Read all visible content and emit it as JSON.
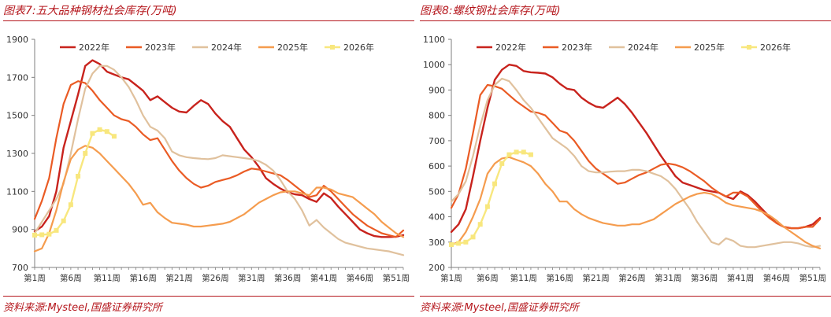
{
  "panels": [
    {
      "title": "图表7:五大品种钢材社会库存(万吨)",
      "source": "资料来源:Mysteel,国盛证券研究所",
      "chart_data": {
        "type": "line",
        "title": "图表7:五大品种钢材社会库存(万吨)",
        "xlabel": "",
        "ylabel": "万吨",
        "ylim": [
          700,
          1900
        ],
        "yticks": [
          700,
          900,
          1100,
          1300,
          1500,
          1700,
          1900
        ],
        "x_count": 52,
        "xtick_labels": [
          "第1周",
          "第6周",
          "第11周",
          "第16周",
          "第21周",
          "第26周",
          "第31周",
          "第36周",
          "第41周",
          "第46周",
          "第51周"
        ],
        "xtick_weeks": [
          1,
          6,
          11,
          16,
          21,
          26,
          31,
          36,
          41,
          46,
          51
        ],
        "legend_position": "top",
        "series": [
          {
            "name": "2022年",
            "color": "#c8231d",
            "width": 2.4,
            "marker": false,
            "values": [
              890,
              915,
              970,
              1100,
              1330,
              1470,
              1610,
              1760,
              1790,
              1770,
              1730,
              1715,
              1700,
              1690,
              1660,
              1630,
              1580,
              1600,
              1570,
              1540,
              1520,
              1515,
              1550,
              1580,
              1560,
              1510,
              1470,
              1440,
              1380,
              1320,
              1280,
              1230,
              1170,
              1140,
              1115,
              1095,
              1085,
              1080,
              1060,
              1045,
              1090,
              1065,
              1020,
              980,
              940,
              900,
              880,
              865,
              860,
              860,
              862,
              870
            ]
          },
          {
            "name": "2023年",
            "color": "#ea5b24",
            "width": 2.2,
            "marker": false,
            "values": [
              955,
              1050,
              1170,
              1380,
              1560,
              1660,
              1680,
              1670,
              1630,
              1580,
              1540,
              1500,
              1480,
              1470,
              1440,
              1400,
              1370,
              1380,
              1320,
              1260,
              1210,
              1170,
              1140,
              1120,
              1130,
              1150,
              1160,
              1170,
              1185,
              1205,
              1220,
              1215,
              1205,
              1195,
              1185,
              1160,
              1130,
              1100,
              1070,
              1080,
              1130,
              1100,
              1060,
              1020,
              980,
              950,
              920,
              900,
              880,
              870,
              860,
              895
            ]
          },
          {
            "name": "2024年",
            "color": "#e0c19d",
            "width": 2.2,
            "marker": false,
            "values": [
              880,
              940,
              1000,
              1060,
              1140,
              1300,
              1480,
              1640,
              1720,
              1760,
              1760,
              1740,
              1700,
              1650,
              1580,
              1500,
              1440,
              1420,
              1380,
              1310,
              1290,
              1280,
              1275,
              1272,
              1270,
              1275,
              1290,
              1285,
              1280,
              1275,
              1270,
              1260,
              1240,
              1210,
              1160,
              1100,
              1060,
              1000,
              920,
              950,
              910,
              880,
              850,
              830,
              820,
              810,
              800,
              795,
              790,
              785,
              775,
              765
            ]
          },
          {
            "name": "2025年",
            "color": "#f59c4e",
            "width": 2.2,
            "marker": false,
            "values": [
              785,
              800,
              880,
              1000,
              1150,
              1270,
              1320,
              1340,
              1330,
              1300,
              1260,
              1220,
              1180,
              1140,
              1090,
              1030,
              1040,
              990,
              960,
              935,
              930,
              925,
              915,
              915,
              920,
              925,
              930,
              940,
              960,
              980,
              1010,
              1040,
              1060,
              1080,
              1095,
              1100,
              1100,
              1090,
              1080,
              1120,
              1120,
              1110,
              1090,
              1080,
              1070,
              1040,
              1010,
              980,
              940,
              910,
              880,
              860
            ]
          },
          {
            "name": "2026年",
            "color": "#f8e77e",
            "width": 2.4,
            "marker": true,
            "values": [
              870,
              872,
              875,
              895,
              945,
              1030,
              1180,
              1300,
              1405,
              1425,
              1415,
              1390
            ]
          }
        ]
      }
    },
    {
      "title": "图表8:螺纹钢社会库存(万吨)",
      "source": "资料来源:Mysteel,国盛证券研究所",
      "chart_data": {
        "type": "line",
        "title": "图表8:螺纹钢社会库存(万吨)",
        "xlabel": "",
        "ylabel": "万吨",
        "ylim": [
          200,
          1100
        ],
        "yticks": [
          200,
          300,
          400,
          500,
          600,
          700,
          800,
          900,
          1000,
          1100
        ],
        "x_count": 52,
        "xtick_labels": [
          "第1周",
          "第6周",
          "第11周",
          "第16周",
          "第21周",
          "第26周",
          "第31周",
          "第36周",
          "第41周",
          "第46周",
          "第51周"
        ],
        "xtick_weeks": [
          1,
          6,
          11,
          16,
          21,
          26,
          31,
          36,
          41,
          46,
          51
        ],
        "legend_position": "top",
        "series": [
          {
            "name": "2022年",
            "color": "#c8231d",
            "width": 2.4,
            "marker": false,
            "values": [
              340,
              370,
              430,
              560,
              700,
              830,
              940,
              980,
              1000,
              995,
              975,
              970,
              968,
              965,
              950,
              925,
              905,
              900,
              870,
              850,
              835,
              830,
              850,
              870,
              845,
              810,
              770,
              730,
              685,
              640,
              600,
              560,
              535,
              525,
              515,
              505,
              500,
              495,
              480,
              470,
              500,
              485,
              460,
              430,
              400,
              375,
              360,
              355,
              355,
              360,
              370,
              395
            ]
          },
          {
            "name": "2023年",
            "color": "#ea5b24",
            "width": 2.2,
            "marker": false,
            "values": [
              435,
              490,
              590,
              730,
              880,
              920,
              915,
              905,
              880,
              855,
              835,
              815,
              810,
              800,
              770,
              740,
              730,
              700,
              660,
              620,
              590,
              570,
              550,
              530,
              535,
              550,
              565,
              575,
              590,
              605,
              610,
              605,
              595,
              580,
              560,
              540,
              515,
              495,
              480,
              495,
              495,
              480,
              450,
              420,
              395,
              375,
              360,
              355,
              355,
              360,
              360,
              390
            ]
          },
          {
            "name": "2024年",
            "color": "#e0c19d",
            "width": 2.2,
            "marker": false,
            "values": [
              460,
              490,
              540,
              640,
              760,
              860,
              920,
              945,
              935,
              900,
              860,
              830,
              790,
              750,
              710,
              690,
              670,
              640,
              600,
              580,
              575,
              575,
              578,
              580,
              580,
              585,
              585,
              580,
              570,
              560,
              540,
              510,
              470,
              430,
              380,
              340,
              300,
              290,
              315,
              305,
              285,
              280,
              280,
              285,
              290,
              295,
              300,
              300,
              295,
              285,
              280,
              285
            ]
          },
          {
            "name": "2025年",
            "color": "#f59c4e",
            "width": 2.2,
            "marker": false,
            "values": [
              290,
              300,
              340,
              400,
              470,
              570,
              610,
              630,
              635,
              625,
              615,
              600,
              570,
              530,
              500,
              460,
              460,
              430,
              410,
              395,
              385,
              375,
              370,
              365,
              365,
              370,
              370,
              380,
              390,
              410,
              430,
              450,
              465,
              480,
              490,
              495,
              490,
              475,
              455,
              445,
              440,
              435,
              430,
              420,
              405,
              385,
              360,
              340,
              320,
              300,
              285,
              275
            ]
          },
          {
            "name": "2026年",
            "color": "#f8e77e",
            "width": 2.4,
            "marker": true,
            "values": [
              290,
              295,
              300,
              320,
              370,
              440,
              530,
              610,
              645,
              655,
              655,
              645
            ]
          }
        ]
      }
    }
  ]
}
